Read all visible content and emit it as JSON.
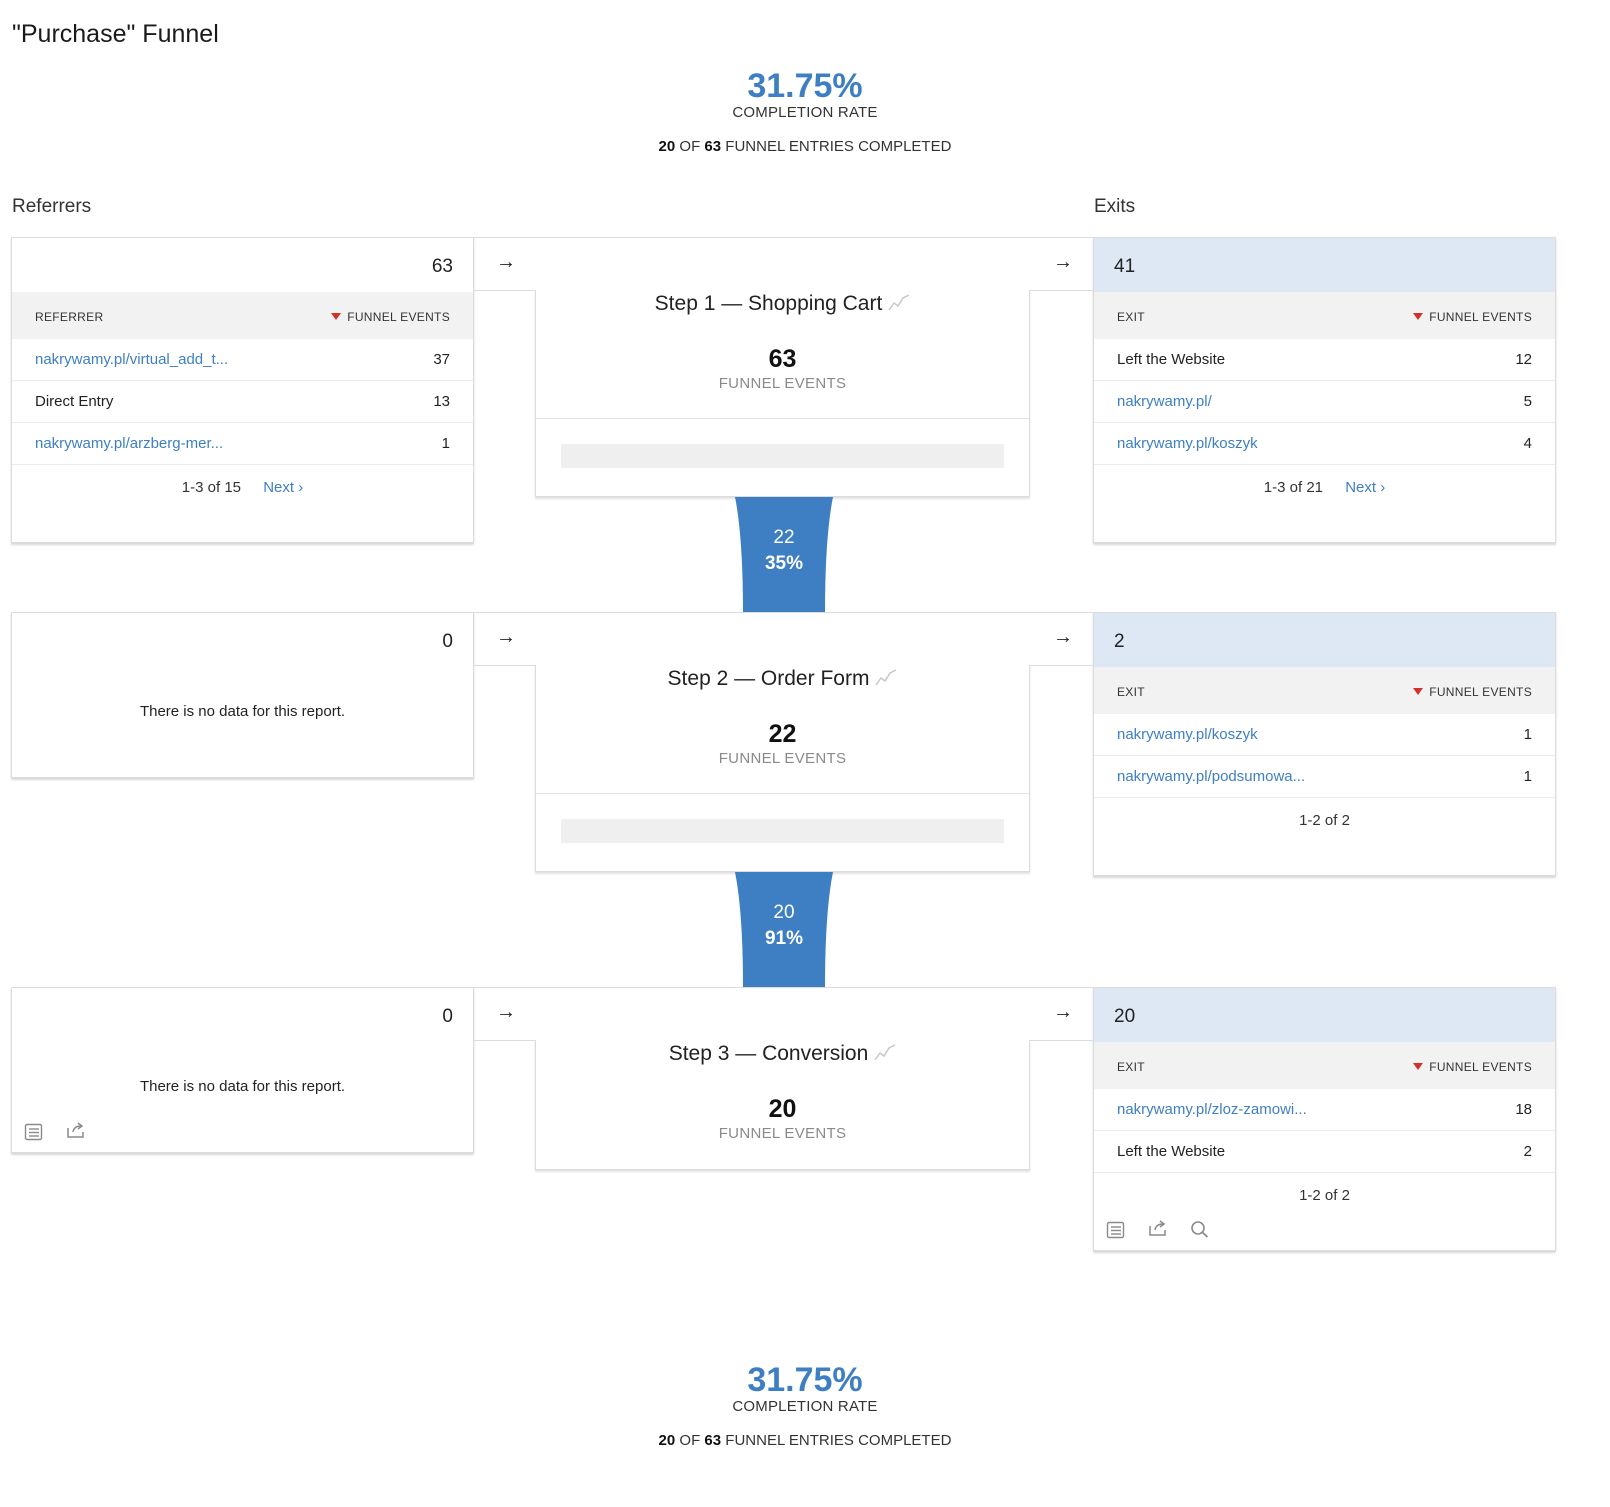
{
  "page_title": "\"Purchase\" Funnel",
  "summary_top": {
    "rate": "31.75%",
    "rate_label": "COMPLETION RATE",
    "completed": "20",
    "of_word": "OF",
    "entries": "63",
    "suffix": "FUNNEL ENTRIES COMPLETED"
  },
  "summary_bottom": {
    "rate": "31.75%",
    "rate_label": "COMPLETION RATE",
    "completed": "20",
    "of_word": "OF",
    "entries": "63",
    "suffix": "FUNNEL ENTRIES COMPLETED"
  },
  "labels": {
    "referrers": "Referrers",
    "exits": "Exits"
  },
  "arrow_glyph": "→",
  "steps": [
    {
      "title": "Step 1 — Shopping Cart",
      "count": "63",
      "unit": "FUNNEL EVENTS",
      "referrers": {
        "total": "63",
        "col1": "REFERRER",
        "col2": "FUNNEL EVENTS",
        "rows": [
          {
            "label": "nakrywamy.pl/virtual_add_t...",
            "value": "37",
            "link": true
          },
          {
            "label": "Direct Entry",
            "value": "13",
            "link": false
          },
          {
            "label": "nakrywamy.pl/arzberg-mer...",
            "value": "1",
            "link": true
          }
        ],
        "pager": "1-3 of 15",
        "next": "Next ›"
      },
      "exits": {
        "total": "41",
        "col1": "EXIT",
        "col2": "FUNNEL EVENTS",
        "rows": [
          {
            "label": "Left the Website",
            "value": "12",
            "link": false
          },
          {
            "label": "nakrywamy.pl/",
            "value": "5",
            "link": true
          },
          {
            "label": "nakrywamy.pl/koszyk",
            "value": "4",
            "link": true
          }
        ],
        "pager": "1-3 of 21",
        "next": "Next ›"
      },
      "flow": {
        "count": "22",
        "percent": "35%"
      }
    },
    {
      "title": "Step 2 — Order Form",
      "count": "22",
      "unit": "FUNNEL EVENTS",
      "referrers": {
        "total": "0",
        "no_data": "There is no data for this report."
      },
      "exits": {
        "total": "2",
        "col1": "EXIT",
        "col2": "FUNNEL EVENTS",
        "rows": [
          {
            "label": "nakrywamy.pl/koszyk",
            "value": "1",
            "link": true
          },
          {
            "label": "nakrywamy.pl/podsumowa...",
            "value": "1",
            "link": true
          }
        ],
        "pager": "1-2 of 2"
      },
      "flow": {
        "count": "20",
        "percent": "91%"
      }
    },
    {
      "title": "Step 3 — Conversion",
      "count": "20",
      "unit": "FUNNEL EVENTS",
      "referrers": {
        "total": "0",
        "no_data": "There is no data for this report."
      },
      "exits": {
        "total": "20",
        "col1": "EXIT",
        "col2": "FUNNEL EVENTS",
        "rows": [
          {
            "label": "nakrywamy.pl/zloz-zamowi...",
            "value": "18",
            "link": true
          },
          {
            "label": "Left the Website",
            "value": "2",
            "link": false
          }
        ],
        "pager": "1-2 of 2"
      }
    }
  ],
  "icons": {
    "table": "table-view-icon",
    "export": "export-icon",
    "search": "search-icon",
    "sparkline": "sparkline-icon"
  },
  "colors": {
    "accent": "#3e7fc4",
    "exit_header": "#dde8f4",
    "sort_arrow": "#d0312d"
  }
}
